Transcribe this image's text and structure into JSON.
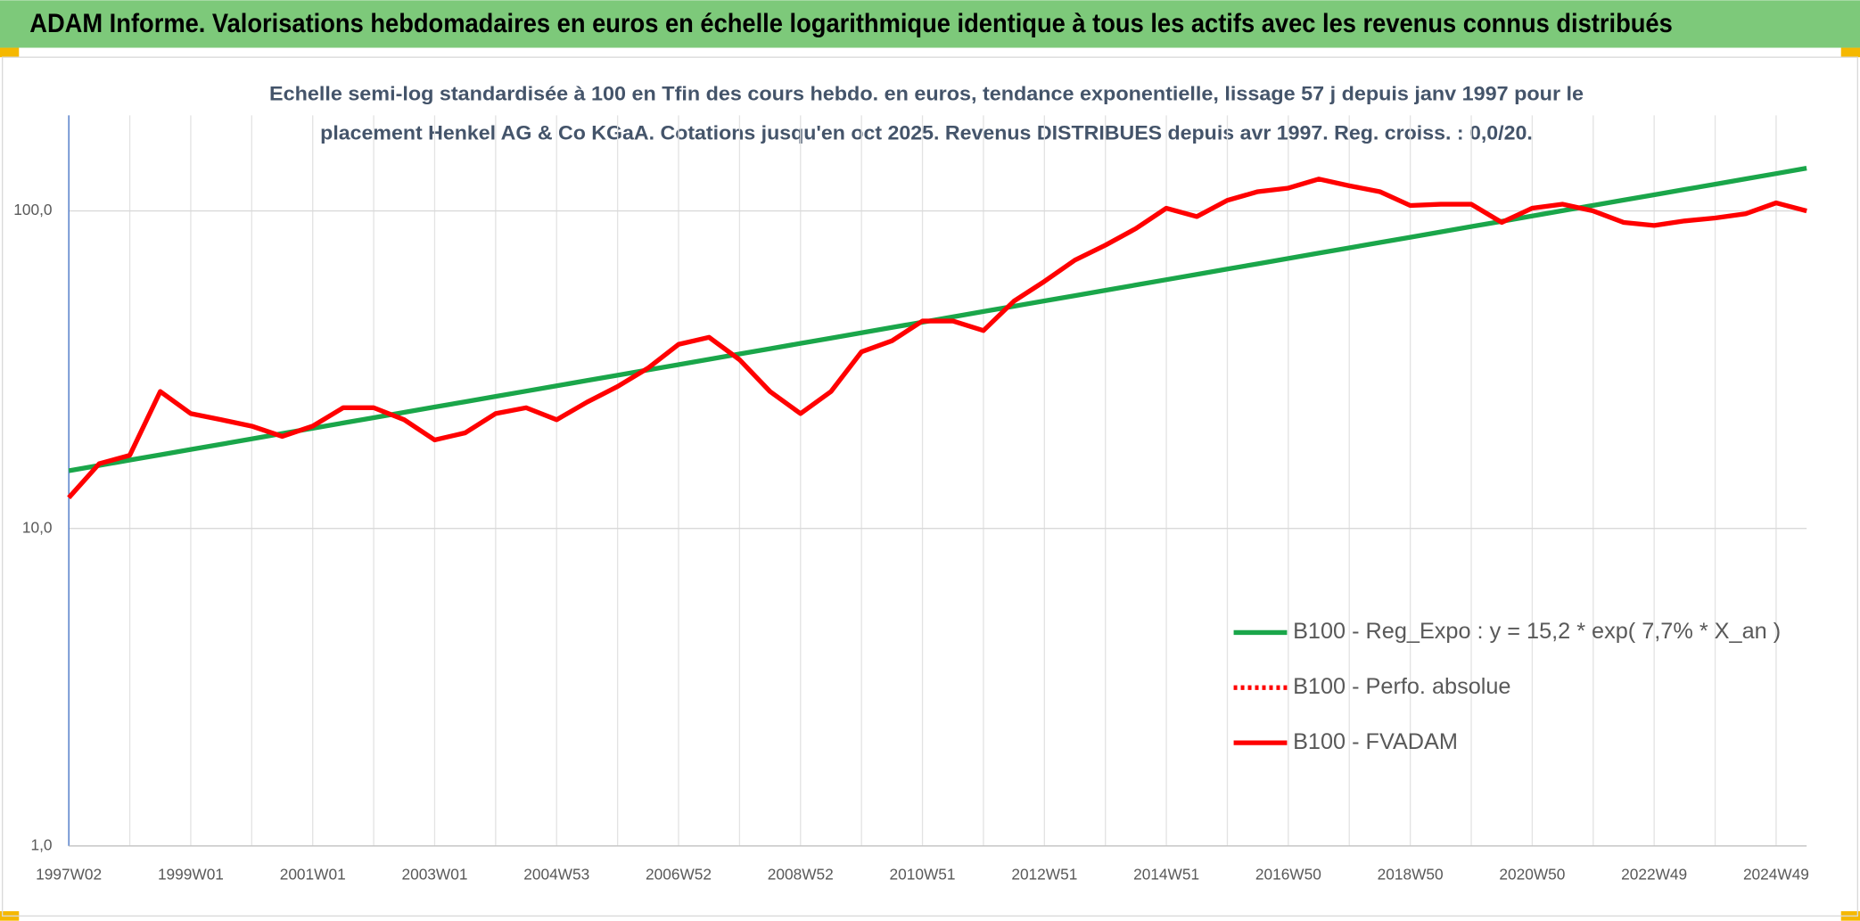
{
  "chart_data": {
    "type": "line",
    "title": "ADAM Informe. Valorisations hebdomadaires en euros en échelle logarithmique identique à tous les actifs avec les revenus connus distribués",
    "subtitle": [
      "Echelle semi-log standardisée à 100 en Tfin des cours hebdo. en euros, tendance exponentielle, lissage 57 j depuis janv 1997 pour le",
      "placement Henkel AG & Co KGaA. Cotations jusqu'en oct 2025. Revenus DISTRIBUES depuis avr 1997. Reg. croiss. : 0,0/20."
    ],
    "categories": [
      "1997W02",
      null,
      null,
      null,
      "1999W01",
      null,
      null,
      null,
      "2001W01",
      null,
      null,
      null,
      "2003W01",
      null,
      null,
      null,
      "2004W53",
      null,
      null,
      null,
      "2006W52",
      null,
      null,
      null,
      "2008W52",
      null,
      null,
      null,
      "2010W51",
      null,
      null,
      null,
      "2012W51",
      null,
      null,
      null,
      "2014W51",
      null,
      null,
      null,
      "2016W50",
      null,
      null,
      null,
      "2018W50",
      null,
      null,
      null,
      "2020W50",
      null,
      null,
      null,
      "2022W49",
      null,
      null,
      null,
      "2024W49",
      null
    ],
    "log_scale": true,
    "ylim": [
      1,
      200
    ],
    "yticks": [
      {
        "value": 1,
        "label": "1,0"
      },
      {
        "value": 10,
        "label": "10,0"
      },
      {
        "value": 100,
        "label": "100,0"
      }
    ],
    "grid": true,
    "legend": "right",
    "series": [
      {
        "name": "B100 - Reg_Expo : y = 15,2 * exp( 7,7% *  X_an )",
        "color": "#1aa64a",
        "style": "solid",
        "values": [
          15.2,
          15.8,
          16.42,
          17.06,
          17.73,
          18.42,
          19.15,
          19.9,
          20.68,
          21.49,
          22.33,
          23.21,
          24.12,
          25.07,
          26.05,
          27.07,
          28.13,
          29.24,
          30.38,
          31.58,
          32.81,
          34.1,
          35.44,
          36.83,
          38.27,
          39.77,
          41.33,
          42.96,
          44.64,
          46.39,
          48.21,
          50.1,
          52.07,
          54.11,
          56.24,
          58.44,
          60.74,
          63.12,
          65.6,
          68.17,
          70.85,
          73.63,
          76.52,
          79.52,
          82.64,
          85.89,
          89.26,
          92.76,
          96.4,
          100.2,
          104.1,
          108.2,
          112.4,
          116.8,
          121.4,
          126.2,
          131.1,
          136.3
        ]
      },
      {
        "name": "B100 - Perfo. absolue",
        "color": "#ff0000",
        "style": "dotted",
        "values": [
          12.5,
          16,
          17,
          27,
          23,
          22,
          21,
          19.5,
          21,
          24,
          24,
          22,
          19,
          20,
          23,
          24,
          22,
          25,
          28,
          32,
          38,
          40,
          34,
          27,
          23,
          27,
          36,
          39,
          45,
          45,
          42,
          52,
          60,
          70,
          78,
          88,
          102,
          96,
          108,
          115,
          118,
          126,
          120,
          115,
          104,
          105,
          105,
          92,
          102,
          105,
          100,
          92,
          90,
          93,
          95,
          98,
          106,
          100
        ]
      },
      {
        "name": "B100 - FVADAM",
        "color": "#ff0000",
        "style": "solid",
        "values": [
          12.5,
          16,
          17,
          27,
          23,
          22,
          21,
          19.5,
          21,
          24,
          24,
          22,
          19,
          20,
          23,
          24,
          22,
          25,
          28,
          32,
          38,
          40,
          34,
          27,
          23,
          27,
          36,
          39,
          45,
          45,
          42,
          52,
          60,
          70,
          78,
          88,
          102,
          96,
          108,
          115,
          118,
          126,
          120,
          115,
          104,
          105,
          105,
          92,
          102,
          105,
          100,
          92,
          90,
          93,
          95,
          98,
          106,
          100
        ]
      }
    ]
  }
}
